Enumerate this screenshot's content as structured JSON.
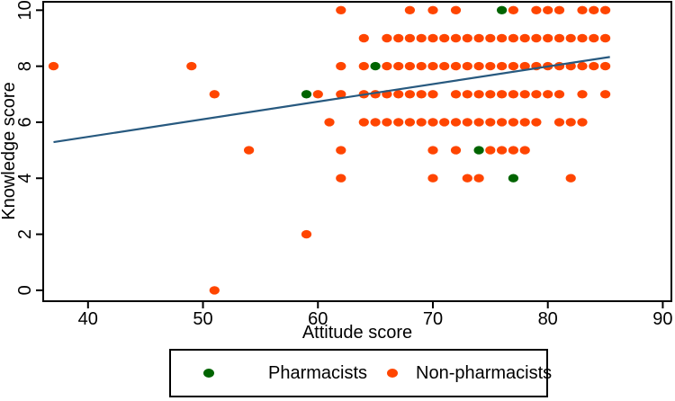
{
  "chart_data": {
    "type": "scatter",
    "title": "",
    "xlabel": "Attitude score",
    "ylabel": "Knowledge score",
    "xlim": [
      36.1,
      90.75
    ],
    "ylim": [
      -0.39,
      10.3
    ],
    "xticks": [
      40,
      50,
      60,
      70,
      80,
      90
    ],
    "yticks": [
      0,
      2,
      4,
      6,
      8,
      10
    ],
    "grid": false,
    "legend_position": "bottom-center",
    "marker": "filled-circle",
    "series": [
      {
        "name": "Pharmacists",
        "color": "#006400",
        "points": [
          [
            59,
            7
          ],
          [
            65,
            8
          ],
          [
            74,
            5
          ],
          [
            76,
            10
          ],
          [
            77,
            4
          ]
        ]
      },
      {
        "name": "Non-pharmacists",
        "color": "#ff4500",
        "points": [
          [
            62,
            10
          ],
          [
            68,
            10
          ],
          [
            70,
            10
          ],
          [
            72,
            10
          ],
          [
            77,
            10
          ],
          [
            79,
            10
          ],
          [
            80,
            10
          ],
          [
            81,
            10
          ],
          [
            83,
            10
          ],
          [
            84,
            10
          ],
          [
            85,
            10
          ],
          [
            64,
            9
          ],
          [
            66,
            9
          ],
          [
            67,
            9
          ],
          [
            68,
            9
          ],
          [
            69,
            9
          ],
          [
            70,
            9
          ],
          [
            71,
            9
          ],
          [
            72,
            9
          ],
          [
            73,
            9
          ],
          [
            74,
            9
          ],
          [
            75,
            9
          ],
          [
            76,
            9
          ],
          [
            77,
            9
          ],
          [
            78,
            9
          ],
          [
            79,
            9
          ],
          [
            80,
            9
          ],
          [
            81,
            9
          ],
          [
            82,
            9
          ],
          [
            83,
            9
          ],
          [
            84,
            9
          ],
          [
            85,
            9
          ],
          [
            37,
            8
          ],
          [
            49,
            8
          ],
          [
            62,
            8
          ],
          [
            64,
            8
          ],
          [
            66,
            8
          ],
          [
            67,
            8
          ],
          [
            68,
            8
          ],
          [
            69,
            8
          ],
          [
            70,
            8
          ],
          [
            71,
            8
          ],
          [
            72,
            8
          ],
          [
            73,
            8
          ],
          [
            74,
            8
          ],
          [
            75,
            8
          ],
          [
            76,
            8
          ],
          [
            77,
            8
          ],
          [
            78,
            8
          ],
          [
            79,
            8
          ],
          [
            80,
            8
          ],
          [
            81,
            8
          ],
          [
            82,
            8
          ],
          [
            83,
            8
          ],
          [
            84,
            8
          ],
          [
            85,
            8
          ],
          [
            51,
            7
          ],
          [
            60,
            7
          ],
          [
            62,
            7
          ],
          [
            64,
            7
          ],
          [
            65,
            7
          ],
          [
            66,
            7
          ],
          [
            67,
            7
          ],
          [
            68,
            7
          ],
          [
            69,
            7
          ],
          [
            70,
            7
          ],
          [
            72,
            7
          ],
          [
            73,
            7
          ],
          [
            74,
            7
          ],
          [
            75,
            7
          ],
          [
            76,
            7
          ],
          [
            77,
            7
          ],
          [
            78,
            7
          ],
          [
            79,
            7
          ],
          [
            80,
            7
          ],
          [
            81,
            7
          ],
          [
            83,
            7
          ],
          [
            85,
            7
          ],
          [
            61,
            6
          ],
          [
            64,
            6
          ],
          [
            65,
            6
          ],
          [
            66,
            6
          ],
          [
            67,
            6
          ],
          [
            68,
            6
          ],
          [
            69,
            6
          ],
          [
            70,
            6
          ],
          [
            71,
            6
          ],
          [
            72,
            6
          ],
          [
            73,
            6
          ],
          [
            74,
            6
          ],
          [
            75,
            6
          ],
          [
            76,
            6
          ],
          [
            77,
            6
          ],
          [
            78,
            6
          ],
          [
            79,
            6
          ],
          [
            81,
            6
          ],
          [
            82,
            6
          ],
          [
            83,
            6
          ],
          [
            54,
            5
          ],
          [
            62,
            5
          ],
          [
            70,
            5
          ],
          [
            72,
            5
          ],
          [
            75,
            5
          ],
          [
            76,
            5
          ],
          [
            77,
            5
          ],
          [
            78,
            5
          ],
          [
            62,
            4
          ],
          [
            70,
            4
          ],
          [
            73,
            4
          ],
          [
            74,
            4
          ],
          [
            82,
            4
          ],
          [
            59,
            2
          ],
          [
            51,
            0
          ]
        ]
      }
    ],
    "fit_line": {
      "color": "#27597f",
      "x": [
        37.0,
        85.4
      ],
      "y": [
        5.29,
        8.33
      ]
    }
  },
  "legend": {
    "items": [
      {
        "label": "Pharmacists",
        "color": "#006400"
      },
      {
        "label": "Non-pharmacists",
        "color": "#ff4500"
      }
    ]
  }
}
